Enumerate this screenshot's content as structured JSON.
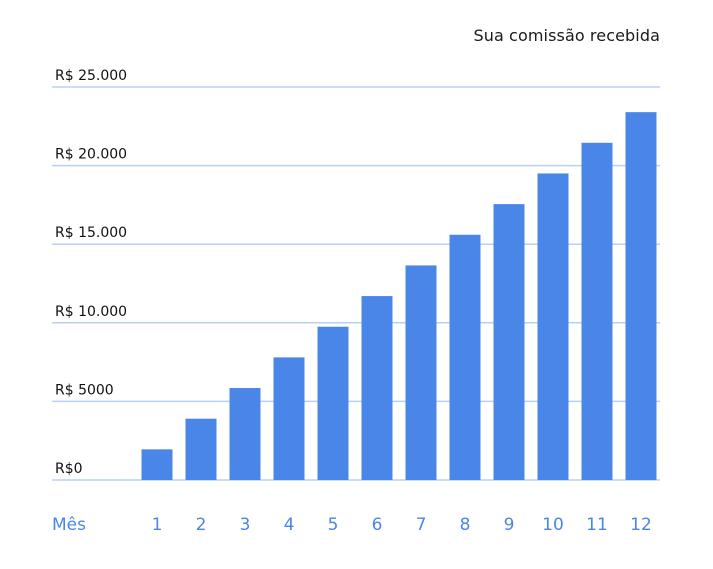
{
  "chart_data": {
    "type": "bar",
    "legend": "Sua comissão recebida",
    "xlabel": "Mês",
    "categories": [
      "1",
      "2",
      "3",
      "4",
      "5",
      "6",
      "7",
      "8",
      "9",
      "10",
      "11",
      "12"
    ],
    "series": [
      {
        "name": "Sua comissão recebida",
        "values": [
          1950,
          3900,
          5850,
          7800,
          9750,
          11700,
          13650,
          15600,
          17550,
          19500,
          21450,
          23400
        ]
      }
    ],
    "yticks": [
      0,
      5000,
      10000,
      15000,
      20000,
      25000
    ],
    "ytick_labels": [
      "R$0",
      "R$ 5000",
      "R$ 10.000",
      "R$ 15.000",
      "R$ 20.000",
      "R$ 25.000"
    ],
    "ylim": [
      0,
      25000
    ],
    "grid": true,
    "legend_position": "top-right",
    "colors": {
      "bar": "#4a86e8",
      "grid": "#b9d0f5",
      "axis_text": "#111111",
      "category_text": "#4a86e8"
    }
  }
}
